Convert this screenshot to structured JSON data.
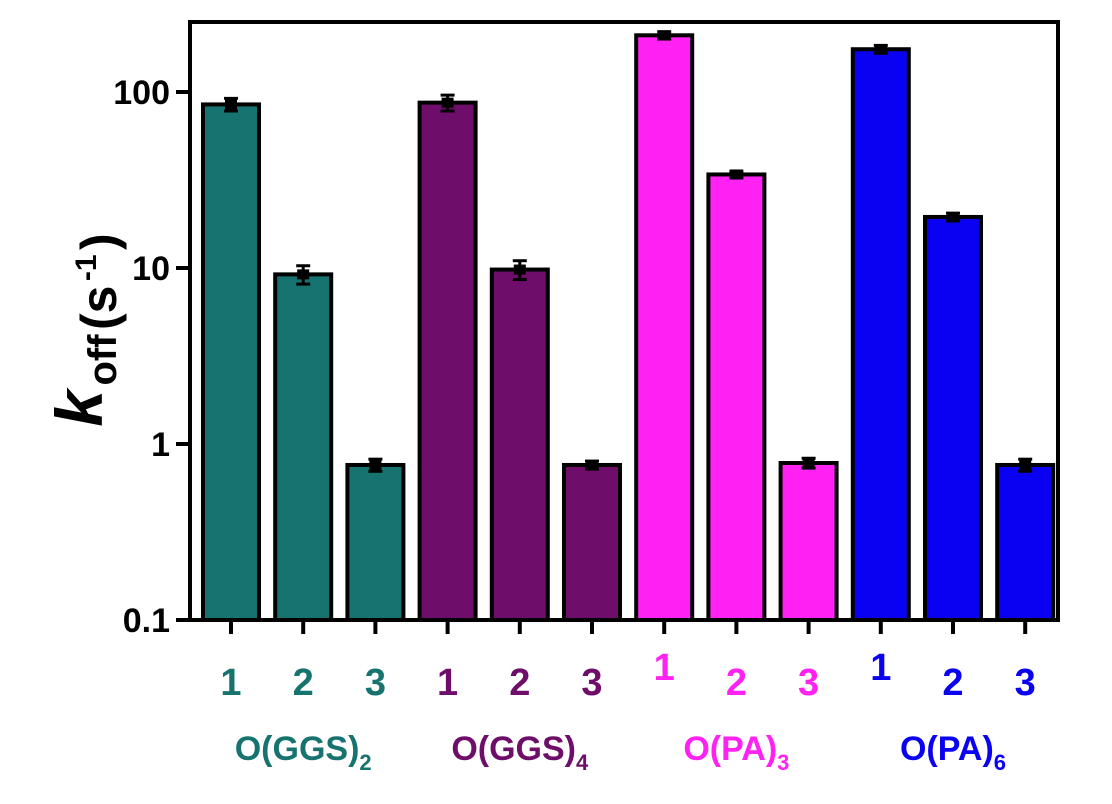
{
  "chart_data": {
    "type": "bar",
    "title": "",
    "scale": "log",
    "ylim": [
      0.1,
      250
    ],
    "yticks": [
      {
        "value": 0.1,
        "label": "0.1"
      },
      {
        "value": 1,
        "label": "1"
      },
      {
        "value": 10,
        "label": "10"
      },
      {
        "value": 100,
        "label": "100"
      }
    ],
    "ylabel": {
      "main": "k",
      "sub": "off",
      "unit_open": "(s",
      "unit_sup": "-1",
      "unit_close": ")"
    },
    "groups": [
      {
        "label": {
          "prefix": "O(GGS)",
          "sub": "2"
        },
        "color": "#17736F",
        "bars": [
          {
            "category": "1",
            "value": 85,
            "error": 7
          },
          {
            "category": "2",
            "value": 9.2,
            "error": 1.1
          },
          {
            "category": "3",
            "value": 0.76,
            "error": 0.06
          }
        ]
      },
      {
        "label": {
          "prefix": "O(GGS)",
          "sub": "4"
        },
        "color": "#6E0E6A",
        "bars": [
          {
            "category": "1",
            "value": 87,
            "error": 9
          },
          {
            "category": "2",
            "value": 9.8,
            "error": 1.2
          },
          {
            "category": "3",
            "value": 0.76,
            "error": 0.04
          }
        ]
      },
      {
        "label": {
          "prefix": "O(PA)",
          "sub": "3"
        },
        "color": "#FF22F2",
        "bars": [
          {
            "category": "1",
            "value": 210,
            "error": 10
          },
          {
            "category": "2",
            "value": 34,
            "error": 1.5
          },
          {
            "category": "3",
            "value": 0.78,
            "error": 0.05
          }
        ]
      },
      {
        "label": {
          "prefix": "O(PA)",
          "sub": "6"
        },
        "color": "#0A00F2",
        "bars": [
          {
            "category": "1",
            "value": 175,
            "error": 9
          },
          {
            "category": "2",
            "value": 19.5,
            "error": 1
          },
          {
            "category": "3",
            "value": 0.76,
            "error": 0.06
          }
        ]
      }
    ]
  }
}
